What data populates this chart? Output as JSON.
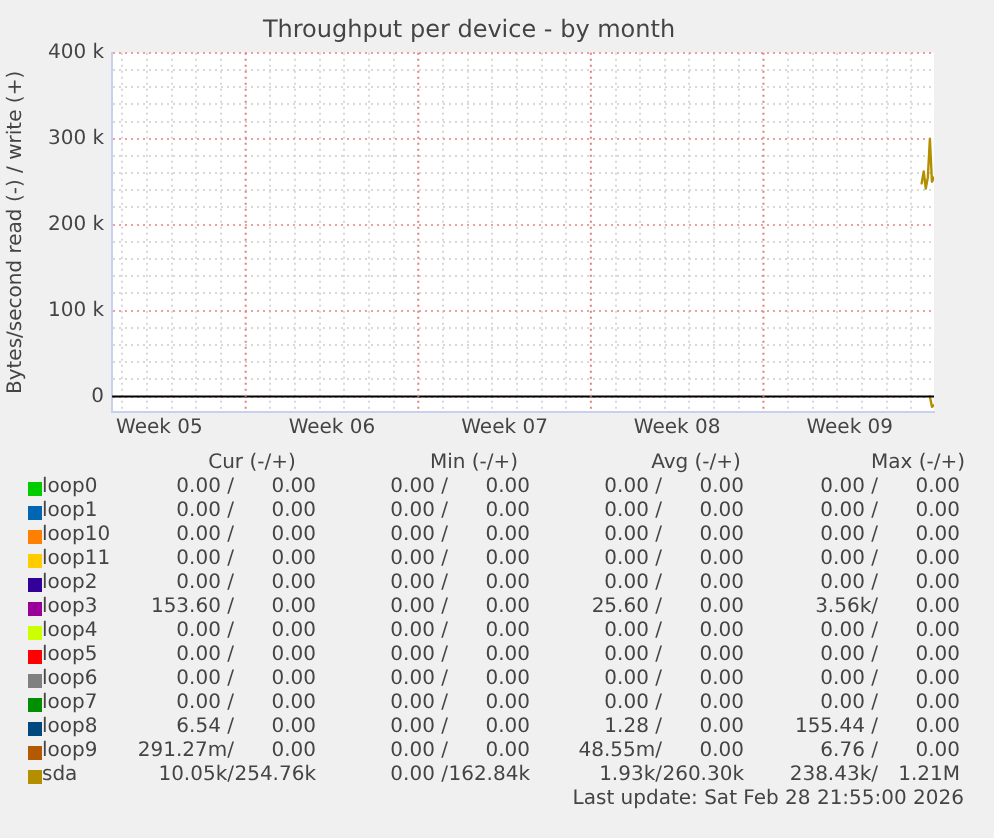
{
  "chart_data": {
    "type": "line",
    "title": "Throughput per device - by month",
    "ylabel": "Bytes/second read (-) / write (+)",
    "xlim": [
      "2026-01-26T14:00",
      "2026-02-28T22:00"
    ],
    "xticks": [
      {
        "value": "2026-01-27",
        "label": null
      },
      {
        "value": "2026-01-28",
        "label": null
      },
      {
        "value": "2026-01-28T12:00",
        "label": "Week 05"
      },
      {
        "value": "2026-01-29",
        "label": null
      },
      {
        "value": "2026-01-30",
        "label": null
      },
      {
        "value": "2026-01-31",
        "label": null
      },
      {
        "value": "2026-02-02",
        "label": null
      },
      {
        "value": "2026-02-03",
        "label": null
      },
      {
        "value": "2026-02-04",
        "label": null
      },
      {
        "value": "2026-02-04T12:00",
        "label": "Week 06"
      },
      {
        "value": "2026-02-05",
        "label": null
      },
      {
        "value": "2026-02-06",
        "label": null
      },
      {
        "value": "2026-02-07",
        "label": null
      },
      {
        "value": "2026-02-09",
        "label": null
      },
      {
        "value": "2026-02-10",
        "label": null
      },
      {
        "value": "2026-02-11",
        "label": null
      },
      {
        "value": "2026-02-11T12:00",
        "label": "Week 07"
      },
      {
        "value": "2026-02-12",
        "label": null
      },
      {
        "value": "2026-02-13",
        "label": null
      },
      {
        "value": "2026-02-14",
        "label": null
      },
      {
        "value": "2026-02-16",
        "label": null
      },
      {
        "value": "2026-02-17",
        "label": null
      },
      {
        "value": "2026-02-18",
        "label": null
      },
      {
        "value": "2026-02-18T12:00",
        "label": "Week 08"
      },
      {
        "value": "2026-02-19",
        "label": null
      },
      {
        "value": "2026-02-20",
        "label": null
      },
      {
        "value": "2026-02-21",
        "label": null
      },
      {
        "value": "2026-02-23",
        "label": null
      },
      {
        "value": "2026-02-24",
        "label": null
      },
      {
        "value": "2026-02-25",
        "label": null
      },
      {
        "value": "2026-02-25T12:00",
        "label": "Week 09"
      },
      {
        "value": "2026-02-26",
        "label": null
      },
      {
        "value": "2026-02-27",
        "label": null
      },
      {
        "value": "2026-02-28",
        "label": null
      }
    ],
    "ylim": [
      -18000,
      400000
    ],
    "yticks": [
      {
        "value": 0,
        "label": "0"
      },
      {
        "value": 20000,
        "label": null
      },
      {
        "value": 40000,
        "label": null
      },
      {
        "value": 60000,
        "label": null
      },
      {
        "value": 80000,
        "label": null
      },
      {
        "value": 100000,
        "label": "100 k"
      },
      {
        "value": 120000,
        "label": null
      },
      {
        "value": 140000,
        "label": null
      },
      {
        "value": 160000,
        "label": null
      },
      {
        "value": 180000,
        "label": null
      },
      {
        "value": 200000,
        "label": "200 k"
      },
      {
        "value": 220000,
        "label": null
      },
      {
        "value": 240000,
        "label": null
      },
      {
        "value": 260000,
        "label": null
      },
      {
        "value": 280000,
        "label": null
      },
      {
        "value": 300000,
        "label": "300 k"
      },
      {
        "value": 320000,
        "label": null
      },
      {
        "value": 340000,
        "label": null
      },
      {
        "value": 360000,
        "label": null
      },
      {
        "value": 380000,
        "label": null
      },
      {
        "value": 400000,
        "label": "400 k"
      }
    ],
    "grid": true,
    "legend": "bottom",
    "marker": "none",
    "line_style": "solid",
    "ref_lines": [
      {
        "axis": "y",
        "value": 0,
        "color": "#000000",
        "line_style": "solid"
      },
      {
        "axis": "x",
        "value": "2026-02-01",
        "color": "#e08080",
        "line_style": "dotted"
      },
      {
        "axis": "x",
        "value": "2026-02-08",
        "color": "#e08080",
        "line_style": "dotted"
      },
      {
        "axis": "x",
        "value": "2026-02-15",
        "color": "#e08080",
        "line_style": "dotted"
      },
      {
        "axis": "x",
        "value": "2026-02-22",
        "color": "#e08080",
        "line_style": "dotted"
      }
    ],
    "x": [
      "2026-02-28T10:00",
      "2026-02-28T12:00",
      "2026-02-28T14:00",
      "2026-02-28T16:00",
      "2026-02-28T18:00",
      "2026-02-28T20:00",
      "2026-02-28T22:00"
    ],
    "series": [
      {
        "name": "loop0",
        "color": "#00cc00",
        "values": [
          null,
          null,
          null,
          null,
          null,
          null,
          null
        ]
      },
      {
        "name": "loop1",
        "color": "#0066b3",
        "values": [
          null,
          null,
          null,
          null,
          null,
          null,
          null
        ]
      },
      {
        "name": "loop10",
        "color": "#ff8000",
        "values": [
          null,
          null,
          null,
          null,
          null,
          null,
          null
        ]
      },
      {
        "name": "loop11",
        "color": "#ffcc00",
        "values": [
          null,
          null,
          null,
          null,
          null,
          null,
          null
        ]
      },
      {
        "name": "loop2",
        "color": "#330099",
        "values": [
          null,
          null,
          null,
          null,
          null,
          null,
          null
        ]
      },
      {
        "name": "loop3",
        "color": "#990099",
        "values": [
          null,
          null,
          null,
          null,
          null,
          null,
          null
        ]
      },
      {
        "name": "loop4",
        "color": "#ccff00",
        "values": [
          null,
          null,
          null,
          null,
          null,
          null,
          null
        ]
      },
      {
        "name": "loop5",
        "color": "#ff0000",
        "values": [
          null,
          null,
          null,
          null,
          null,
          null,
          null
        ]
      },
      {
        "name": "loop6",
        "color": "#808080",
        "values": [
          null,
          null,
          null,
          null,
          null,
          null,
          null
        ]
      },
      {
        "name": "loop7",
        "color": "#008f00",
        "values": [
          null,
          null,
          null,
          null,
          null,
          null,
          null
        ]
      },
      {
        "name": "loop8",
        "color": "#00487d",
        "values": [
          null,
          null,
          null,
          null,
          null,
          null,
          null
        ]
      },
      {
        "name": "loop9",
        "color": "#b35a00",
        "values": [
          null,
          null,
          null,
          null,
          null,
          null,
          null
        ]
      },
      {
        "name": "sda",
        "color": "#b38f00",
        "values": [
          248000,
          262000,
          242000,
          255000,
          300000,
          250000,
          255000
        ]
      },
      {
        "color": "#b38f00",
        "values": [
          null,
          null,
          null,
          null,
          0,
          -12000,
          -10000
        ]
      }
    ],
    "annotations": [
      "Cur (-/+)",
      "Min (-/+)",
      "Avg (-/+)",
      "Max (-/+)",
      "0.00 /",
      "0.00",
      "0.00 /",
      "0.00",
      "0.00 /",
      "0.00",
      "0.00 /",
      "0.00",
      "0.00 /",
      "0.00",
      "0.00 /",
      "0.00",
      "0.00 /",
      "0.00",
      "0.00 /",
      "0.00",
      "0.00 /",
      "0.00",
      "0.00 /",
      "0.00",
      "0.00 /",
      "0.00",
      "0.00 /",
      "0.00",
      "0.00 /",
      "0.00",
      "0.00 /",
      "0.00",
      "0.00 /",
      "0.00",
      "0.00 /",
      "0.00",
      "0.00 /",
      "0.00",
      "0.00 /",
      "0.00",
      "0.00 /",
      "0.00",
      "0.00 /",
      "0.00",
      "153.60 /",
      "0.00",
      "0.00 /",
      "0.00",
      "25.60 /",
      "0.00",
      "3.56k/",
      "0.00",
      "0.00 /",
      "0.00",
      "0.00 /",
      "0.00",
      "0.00 /",
      "0.00",
      "0.00 /",
      "0.00",
      "0.00 /",
      "0.00",
      "0.00 /",
      "0.00",
      "0.00 /",
      "0.00",
      "0.00 /",
      "0.00",
      "0.00 /",
      "0.00",
      "0.00 /",
      "0.00",
      "0.00 /",
      "0.00",
      "0.00 /",
      "0.00",
      "0.00 /",
      "0.00",
      "0.00 /",
      "0.00",
      "0.00 /",
      "0.00",
      "0.00 /",
      "0.00",
      "6.54 /",
      "0.00",
      "0.00 /",
      "0.00",
      "1.28 /",
      "0.00",
      "155.44 /",
      "0.00",
      "291.27m/",
      "0.00",
      "0.00 /",
      "0.00",
      "48.55m/",
      "0.00",
      "6.76 /",
      "0.00",
      "10.05k/",
      "254.76k",
      "0.00 /",
      "162.84k",
      "1.93k/",
      "260.30k",
      "238.43k/",
      "1.21M",
      "Last update: Sat Feb 28 21:55:00 2026"
    ]
  }
}
